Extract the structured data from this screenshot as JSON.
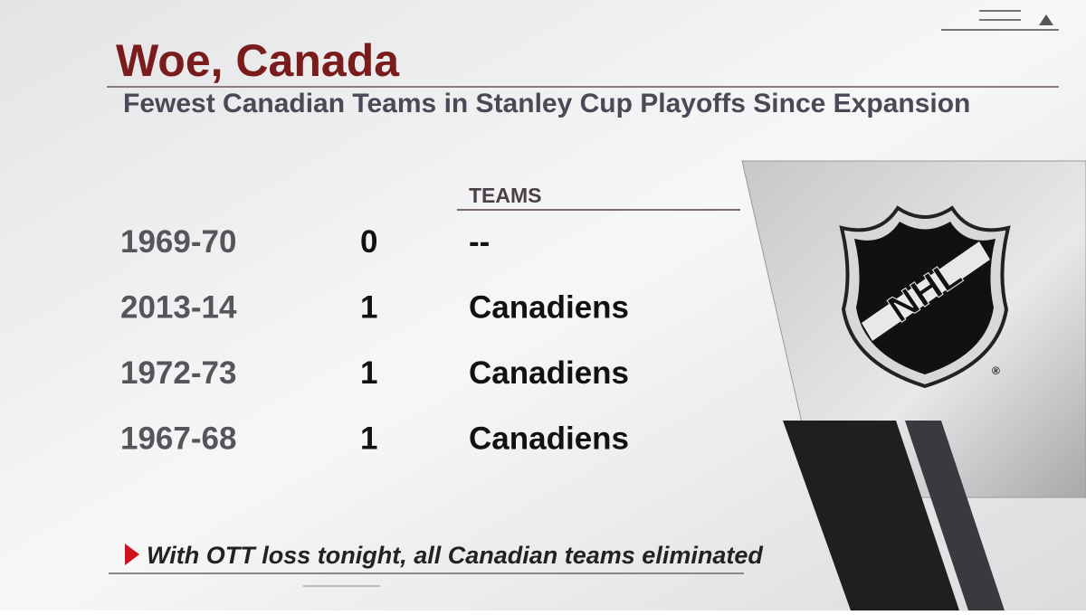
{
  "header": {
    "title": "Woe, Canada",
    "subtitle": "Fewest Canadian Teams in Stanley Cup Playoffs Since Expansion"
  },
  "table": {
    "columns": [
      "TEAMS"
    ],
    "rows": [
      [
        "1969-70",
        0,
        "--"
      ],
      [
        "2013-14",
        1,
        "Canadiens"
      ],
      [
        "1972-73",
        1,
        "Canadiens"
      ],
      [
        "1967-68",
        1,
        "Canadiens"
      ]
    ]
  },
  "footnote": "With OTT loss tonight, all Canadian teams eliminated",
  "logo": {
    "text": "NHL"
  }
}
